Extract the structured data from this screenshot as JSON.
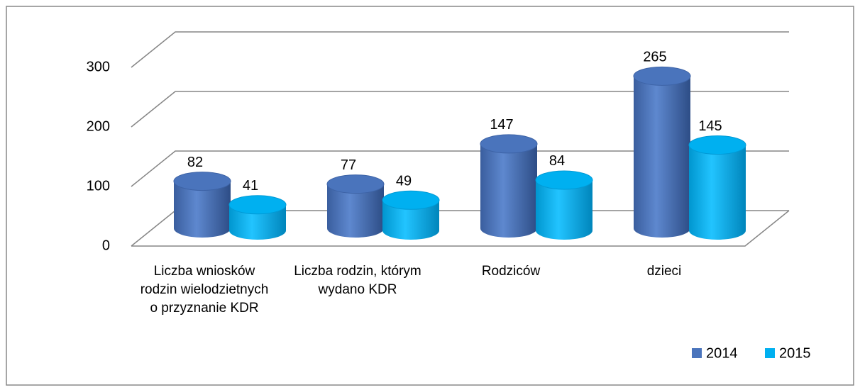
{
  "chart_data": {
    "type": "bar3d",
    "categories": [
      "Liczba wniosków rodzin wielodzietnych o przyznanie KDR",
      "Liczba rodzin, którym wydano KDR",
      "Rodziców",
      "dzieci"
    ],
    "series": [
      {
        "name": "2014",
        "color": "#4a74bc",
        "values": [
          82,
          77,
          147,
          265
        ]
      },
      {
        "name": "2015",
        "color": "#00b0f0",
        "values": [
          41,
          49,
          84,
          145
        ]
      }
    ],
    "ylim": [
      0,
      300
    ],
    "yticks": [
      0,
      100,
      200,
      300
    ],
    "grid": true,
    "legend": "lower right"
  }
}
